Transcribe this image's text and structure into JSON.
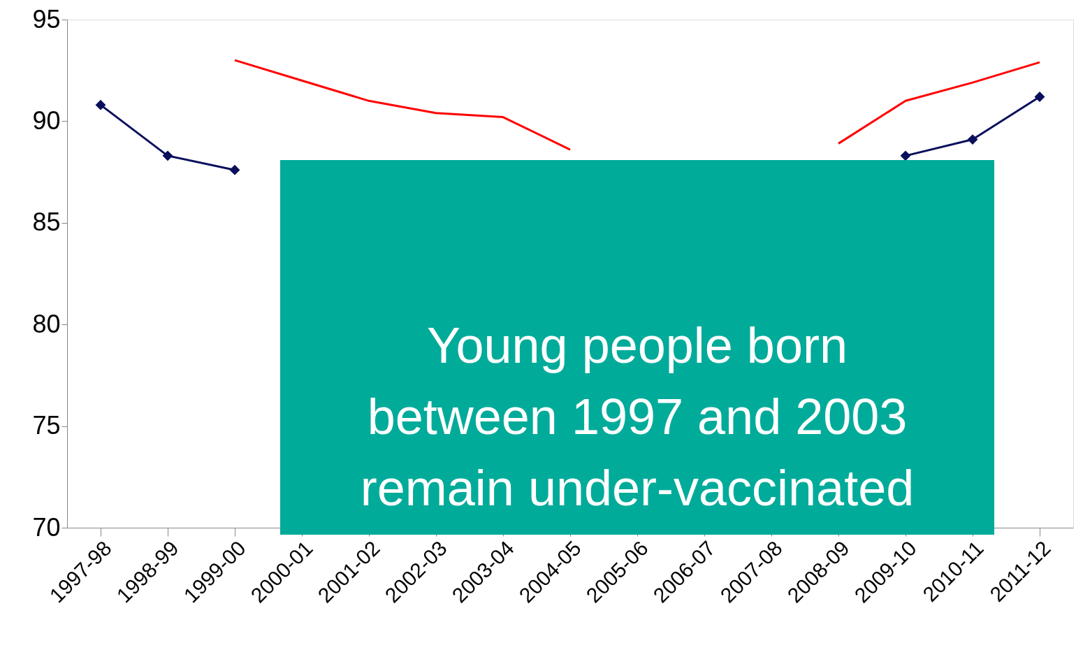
{
  "chart_data": {
    "type": "line",
    "categories": [
      "1997-98",
      "1998-99",
      "1999-00",
      "2000-01",
      "2001-02",
      "2002-03",
      "2003-04",
      "2004-05",
      "2005-06",
      "2006-07",
      "2007-08",
      "2008-09",
      "2009-10",
      "2010-11",
      "2011-12"
    ],
    "series": [
      {
        "color": "#0a0f5c",
        "marker": "diamond",
        "values": [
          90.8,
          88.3,
          87.6,
          null,
          null,
          null,
          null,
          null,
          null,
          null,
          null,
          null,
          88.3,
          89.1,
          91.2
        ]
      },
      {
        "color": "#ff0000",
        "values": [
          null,
          null,
          93.0,
          92.0,
          91.0,
          90.4,
          90.2,
          88.6,
          null,
          null,
          null,
          88.9,
          91.0,
          91.9,
          92.9
        ]
      }
    ],
    "ylim": [
      70,
      95
    ],
    "yticks": [
      70,
      75,
      80,
      85,
      90,
      95
    ],
    "grid": false,
    "marker": "none",
    "line_style": "solid",
    "annotations": [
      "Young people born between 1997 and 2003 remain under-vaccinated"
    ]
  }
}
